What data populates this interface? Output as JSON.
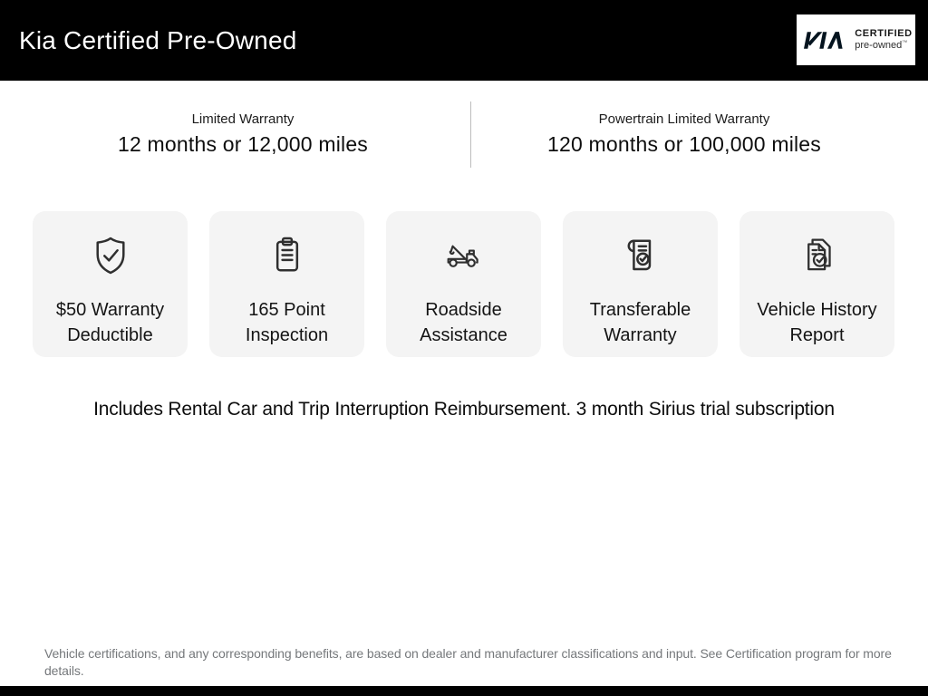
{
  "header": {
    "title": "Kia Certified Pre-Owned",
    "badge": {
      "brand": "KIA",
      "line1": "CERTIFIED",
      "line2": "pre-owned",
      "mark": "™"
    }
  },
  "warranties": [
    {
      "label": "Limited Warranty",
      "value": "12 months or 12,000 miles"
    },
    {
      "label": "Powertrain Limited Warranty",
      "value": "120 months or 100,000 miles"
    }
  ],
  "benefits": [
    {
      "icon": "shield-check-icon",
      "label": "$50 Warranty Deductible"
    },
    {
      "icon": "clipboard-icon",
      "label": "165 Point Inspection"
    },
    {
      "icon": "tow-truck-icon",
      "label": "Roadside Assistance"
    },
    {
      "icon": "scroll-check-icon",
      "label": "Transferable Warranty"
    },
    {
      "icon": "document-check-icon",
      "label": "Vehicle History Report"
    }
  ],
  "includes_note": "Includes Rental Car and Trip Interruption Reimbursement. 3 month Sirius trial subscription",
  "disclaimer": "Vehicle certifications, and any corresponding benefits, are based on dealer and manufacturer classifications and input. See Certification program for more details.",
  "colors": {
    "header_bg": "#000000",
    "card_bg": "#f4f4f4",
    "divider": "#bdbdbd",
    "disclaimer_text": "#75787b"
  }
}
